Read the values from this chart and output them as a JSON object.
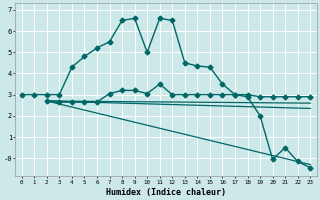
{
  "xlabel": "Humidex (Indice chaleur)",
  "bg_color": "#cce8e8",
  "grid_color": "#ffffff",
  "line_color": "#006666",
  "xlim": [
    -0.5,
    23.5
  ],
  "ylim": [
    -0.85,
    7.3
  ],
  "yticks": [
    0,
    1,
    2,
    3,
    4,
    5,
    6,
    7
  ],
  "ytick_labels": [
    "-0",
    "1",
    "2",
    "3",
    "4",
    "5",
    "6",
    "7"
  ],
  "xticks": [
    0,
    1,
    2,
    3,
    4,
    5,
    6,
    7,
    8,
    9,
    10,
    11,
    12,
    13,
    14,
    15,
    16,
    17,
    18,
    19,
    20,
    21,
    22,
    23
  ],
  "lines": [
    {
      "x": [
        0,
        1,
        2,
        3,
        4,
        5,
        6,
        7,
        8,
        9,
        10,
        11,
        12,
        13,
        14,
        15,
        16,
        17,
        18,
        19,
        20,
        21,
        22,
        23
      ],
      "y": [
        3.0,
        3.0,
        3.0,
        3.0,
        4.3,
        4.8,
        5.2,
        5.5,
        6.5,
        6.6,
        5.0,
        6.6,
        6.5,
        4.5,
        4.35,
        4.3,
        3.5,
        3.0,
        2.9,
        2.0,
        -0.05,
        0.5,
        -0.15,
        -0.45
      ],
      "marker": "D",
      "markersize": 2.5,
      "linewidth": 1.0
    },
    {
      "x": [
        2,
        3,
        4,
        5,
        6,
        7,
        8,
        9,
        10,
        11,
        12,
        13,
        14,
        15,
        16,
        17,
        18,
        19,
        20,
        21,
        22,
        23
      ],
      "y": [
        2.7,
        2.65,
        2.65,
        2.65,
        2.65,
        3.05,
        3.2,
        3.2,
        3.05,
        3.5,
        3.0,
        3.0,
        3.0,
        3.0,
        3.0,
        3.0,
        3.0,
        2.9,
        2.9,
        2.9,
        2.9,
        2.9
      ],
      "marker": "D",
      "markersize": 2.5,
      "linewidth": 1.0
    },
    {
      "x": [
        2,
        23
      ],
      "y": [
        2.7,
        2.6
      ],
      "marker": null,
      "linewidth": 0.9
    },
    {
      "x": [
        2,
        23
      ],
      "y": [
        2.7,
        2.35
      ],
      "marker": null,
      "linewidth": 0.9
    },
    {
      "x": [
        2,
        23
      ],
      "y": [
        2.7,
        -0.3
      ],
      "marker": null,
      "linewidth": 0.9
    }
  ]
}
